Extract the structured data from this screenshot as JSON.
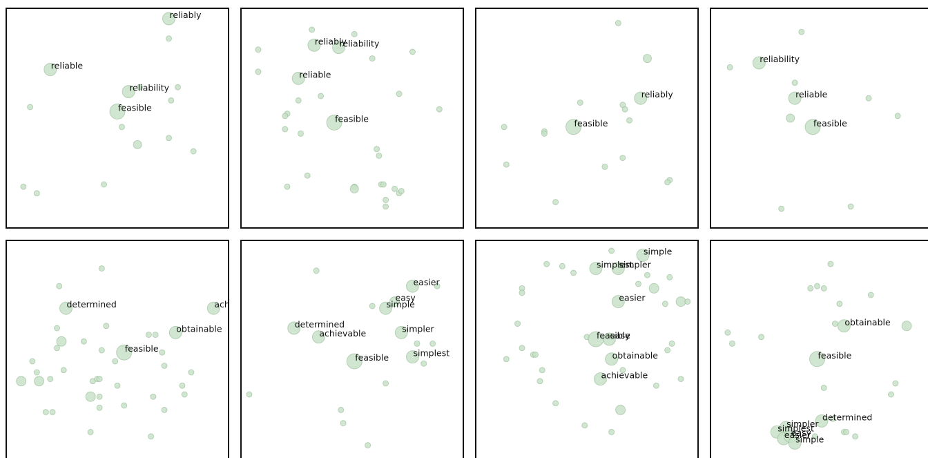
{
  "colors": {
    "point_fill": "#c8e2c8",
    "point_stroke": "#8fb58f",
    "frame": "#111111",
    "label": "#111111"
  },
  "chart_data": [
    {
      "type": "scatter",
      "xlim": [
        0,
        1
      ],
      "ylim": [
        0,
        1
      ],
      "points": [
        {
          "x": 0.73,
          "y": 0.95,
          "size": 9,
          "label": "reliably"
        },
        {
          "x": 0.73,
          "y": 0.86,
          "size": 4
        },
        {
          "x": 0.2,
          "y": 0.72,
          "size": 9,
          "label": "reliable"
        },
        {
          "x": 0.55,
          "y": 0.62,
          "size": 9,
          "label": "reliability"
        },
        {
          "x": 0.6,
          "y": 0.64,
          "size": 4
        },
        {
          "x": 0.77,
          "y": 0.64,
          "size": 4
        },
        {
          "x": 0.74,
          "y": 0.58,
          "size": 4
        },
        {
          "x": 0.11,
          "y": 0.55,
          "size": 4
        },
        {
          "x": 0.5,
          "y": 0.53,
          "size": 11,
          "label": "feasible"
        },
        {
          "x": 0.52,
          "y": 0.46,
          "size": 4
        },
        {
          "x": 0.59,
          "y": 0.38,
          "size": 6
        },
        {
          "x": 0.73,
          "y": 0.41,
          "size": 4
        },
        {
          "x": 0.84,
          "y": 0.35,
          "size": 4
        },
        {
          "x": 0.44,
          "y": 0.2,
          "size": 4
        },
        {
          "x": 0.08,
          "y": 0.19,
          "size": 4
        },
        {
          "x": 0.14,
          "y": 0.16,
          "size": 4
        }
      ]
    },
    {
      "type": "scatter",
      "xlim": [
        0,
        1
      ],
      "ylim": [
        0,
        1
      ],
      "points": [
        {
          "x": 0.33,
          "y": 0.83,
          "size": 9,
          "label": "reliably"
        },
        {
          "x": 0.44,
          "y": 0.82,
          "size": 9,
          "label": "reliability"
        },
        {
          "x": 0.32,
          "y": 0.9,
          "size": 4
        },
        {
          "x": 0.51,
          "y": 0.88,
          "size": 4
        },
        {
          "x": 0.08,
          "y": 0.81,
          "size": 4
        },
        {
          "x": 0.77,
          "y": 0.8,
          "size": 4
        },
        {
          "x": 0.59,
          "y": 0.77,
          "size": 4
        },
        {
          "x": 0.08,
          "y": 0.71,
          "size": 4
        },
        {
          "x": 0.26,
          "y": 0.68,
          "size": 9,
          "label": "reliable"
        },
        {
          "x": 0.71,
          "y": 0.61,
          "size": 4
        },
        {
          "x": 0.36,
          "y": 0.6,
          "size": 4
        },
        {
          "x": 0.26,
          "y": 0.58,
          "size": 4
        },
        {
          "x": 0.89,
          "y": 0.54,
          "size": 4
        },
        {
          "x": 0.21,
          "y": 0.52,
          "size": 4
        },
        {
          "x": 0.2,
          "y": 0.51,
          "size": 4
        },
        {
          "x": 0.42,
          "y": 0.48,
          "size": 11,
          "label": "feasible"
        },
        {
          "x": 0.2,
          "y": 0.45,
          "size": 4
        },
        {
          "x": 0.27,
          "y": 0.43,
          "size": 4
        },
        {
          "x": 0.61,
          "y": 0.36,
          "size": 4
        },
        {
          "x": 0.62,
          "y": 0.33,
          "size": 4
        },
        {
          "x": 0.3,
          "y": 0.24,
          "size": 4
        },
        {
          "x": 0.21,
          "y": 0.19,
          "size": 4
        },
        {
          "x": 0.51,
          "y": 0.19,
          "size": 4
        },
        {
          "x": 0.51,
          "y": 0.18,
          "size": 6
        },
        {
          "x": 0.63,
          "y": 0.2,
          "size": 4
        },
        {
          "x": 0.64,
          "y": 0.2,
          "size": 4
        },
        {
          "x": 0.69,
          "y": 0.18,
          "size": 4
        },
        {
          "x": 0.71,
          "y": 0.16,
          "size": 4
        },
        {
          "x": 0.72,
          "y": 0.17,
          "size": 4
        },
        {
          "x": 0.65,
          "y": 0.13,
          "size": 4
        },
        {
          "x": 0.65,
          "y": 0.1,
          "size": 4
        }
      ]
    },
    {
      "type": "scatter",
      "xlim": [
        0,
        1
      ],
      "ylim": [
        0,
        1
      ],
      "points": [
        {
          "x": 0.64,
          "y": 0.93,
          "size": 4
        },
        {
          "x": 0.77,
          "y": 0.77,
          "size": 6
        },
        {
          "x": 0.74,
          "y": 0.59,
          "size": 9,
          "label": "reliably"
        },
        {
          "x": 0.47,
          "y": 0.57,
          "size": 4
        },
        {
          "x": 0.66,
          "y": 0.56,
          "size": 4
        },
        {
          "x": 0.67,
          "y": 0.54,
          "size": 4
        },
        {
          "x": 0.69,
          "y": 0.49,
          "size": 4
        },
        {
          "x": 0.44,
          "y": 0.46,
          "size": 11,
          "label": "feasible"
        },
        {
          "x": 0.13,
          "y": 0.46,
          "size": 4
        },
        {
          "x": 0.31,
          "y": 0.44,
          "size": 4
        },
        {
          "x": 0.31,
          "y": 0.43,
          "size": 4
        },
        {
          "x": 0.66,
          "y": 0.32,
          "size": 4
        },
        {
          "x": 0.58,
          "y": 0.28,
          "size": 4
        },
        {
          "x": 0.14,
          "y": 0.29,
          "size": 4
        },
        {
          "x": 0.87,
          "y": 0.22,
          "size": 4
        },
        {
          "x": 0.86,
          "y": 0.21,
          "size": 4
        },
        {
          "x": 0.36,
          "y": 0.12,
          "size": 4
        }
      ]
    },
    {
      "type": "scatter",
      "xlim": [
        0,
        1
      ],
      "ylim": [
        0,
        1
      ],
      "points": [
        {
          "x": 0.41,
          "y": 0.89,
          "size": 4
        },
        {
          "x": 0.22,
          "y": 0.75,
          "size": 9,
          "label": "reliability"
        },
        {
          "x": 0.09,
          "y": 0.73,
          "size": 4
        },
        {
          "x": 0.38,
          "y": 0.66,
          "size": 4
        },
        {
          "x": 0.38,
          "y": 0.59,
          "size": 9,
          "label": "reliable"
        },
        {
          "x": 0.71,
          "y": 0.59,
          "size": 4
        },
        {
          "x": 0.36,
          "y": 0.5,
          "size": 6
        },
        {
          "x": 0.84,
          "y": 0.51,
          "size": 4
        },
        {
          "x": 0.46,
          "y": 0.46,
          "size": 11,
          "label": "feasible"
        },
        {
          "x": 0.32,
          "y": 0.09,
          "size": 4
        },
        {
          "x": 0.63,
          "y": 0.1,
          "size": 4
        }
      ]
    },
    {
      "type": "scatter",
      "xlim": [
        0,
        1
      ],
      "ylim": [
        0,
        1
      ],
      "points": [
        {
          "x": 0.43,
          "y": 0.87,
          "size": 4
        },
        {
          "x": 0.24,
          "y": 0.79,
          "size": 4
        },
        {
          "x": 0.27,
          "y": 0.69,
          "size": 9,
          "label": "determined"
        },
        {
          "x": 0.93,
          "y": 0.69,
          "size": 9,
          "label": "achievable"
        },
        {
          "x": 0.76,
          "y": 0.58,
          "size": 9,
          "label": "obtainable"
        },
        {
          "x": 0.23,
          "y": 0.6,
          "size": 4
        },
        {
          "x": 0.45,
          "y": 0.61,
          "size": 4
        },
        {
          "x": 0.25,
          "y": 0.54,
          "size": 7
        },
        {
          "x": 0.35,
          "y": 0.54,
          "size": 4
        },
        {
          "x": 0.64,
          "y": 0.57,
          "size": 4
        },
        {
          "x": 0.67,
          "y": 0.57,
          "size": 4
        },
        {
          "x": 0.23,
          "y": 0.51,
          "size": 4
        },
        {
          "x": 0.43,
          "y": 0.5,
          "size": 4
        },
        {
          "x": 0.53,
          "y": 0.49,
          "size": 11,
          "label": "feasible"
        },
        {
          "x": 0.7,
          "y": 0.49,
          "size": 4
        },
        {
          "x": 0.12,
          "y": 0.45,
          "size": 4
        },
        {
          "x": 0.49,
          "y": 0.45,
          "size": 4
        },
        {
          "x": 0.71,
          "y": 0.43,
          "size": 4
        },
        {
          "x": 0.14,
          "y": 0.4,
          "size": 4
        },
        {
          "x": 0.26,
          "y": 0.41,
          "size": 4
        },
        {
          "x": 0.83,
          "y": 0.4,
          "size": 4
        },
        {
          "x": 0.07,
          "y": 0.36,
          "size": 7
        },
        {
          "x": 0.15,
          "y": 0.36,
          "size": 7
        },
        {
          "x": 0.2,
          "y": 0.37,
          "size": 4
        },
        {
          "x": 0.39,
          "y": 0.36,
          "size": 4
        },
        {
          "x": 0.41,
          "y": 0.37,
          "size": 4
        },
        {
          "x": 0.42,
          "y": 0.37,
          "size": 4
        },
        {
          "x": 0.5,
          "y": 0.34,
          "size": 4
        },
        {
          "x": 0.79,
          "y": 0.34,
          "size": 4
        },
        {
          "x": 0.8,
          "y": 0.3,
          "size": 4
        },
        {
          "x": 0.38,
          "y": 0.29,
          "size": 7
        },
        {
          "x": 0.42,
          "y": 0.29,
          "size": 4
        },
        {
          "x": 0.66,
          "y": 0.29,
          "size": 4
        },
        {
          "x": 0.53,
          "y": 0.25,
          "size": 4
        },
        {
          "x": 0.42,
          "y": 0.24,
          "size": 4
        },
        {
          "x": 0.71,
          "y": 0.23,
          "size": 4
        },
        {
          "x": 0.18,
          "y": 0.22,
          "size": 4
        },
        {
          "x": 0.21,
          "y": 0.22,
          "size": 4
        },
        {
          "x": 0.38,
          "y": 0.13,
          "size": 4
        },
        {
          "x": 0.65,
          "y": 0.11,
          "size": 4
        }
      ]
    },
    {
      "type": "scatter",
      "xlim": [
        0,
        1
      ],
      "ylim": [
        0,
        1
      ],
      "points": [
        {
          "x": 0.34,
          "y": 0.86,
          "size": 4
        },
        {
          "x": 0.77,
          "y": 0.79,
          "size": 9,
          "label": "easier"
        },
        {
          "x": 0.88,
          "y": 0.79,
          "size": 4
        },
        {
          "x": 0.69,
          "y": 0.72,
          "size": 7,
          "label": "easy"
        },
        {
          "x": 0.59,
          "y": 0.7,
          "size": 4
        },
        {
          "x": 0.65,
          "y": 0.69,
          "size": 9,
          "label": "simple"
        },
        {
          "x": 0.24,
          "y": 0.6,
          "size": 9,
          "label": "determined"
        },
        {
          "x": 0.35,
          "y": 0.56,
          "size": 9,
          "label": "achievable"
        },
        {
          "x": 0.72,
          "y": 0.58,
          "size": 9,
          "label": "simpler"
        },
        {
          "x": 0.79,
          "y": 0.53,
          "size": 4
        },
        {
          "x": 0.86,
          "y": 0.53,
          "size": 4
        },
        {
          "x": 0.51,
          "y": 0.45,
          "size": 11,
          "label": "feasible"
        },
        {
          "x": 0.77,
          "y": 0.47,
          "size": 9,
          "label": "simplest"
        },
        {
          "x": 0.82,
          "y": 0.44,
          "size": 4
        },
        {
          "x": 0.65,
          "y": 0.35,
          "size": 4
        },
        {
          "x": 0.04,
          "y": 0.3,
          "size": 4
        },
        {
          "x": 0.45,
          "y": 0.23,
          "size": 4
        },
        {
          "x": 0.46,
          "y": 0.17,
          "size": 4
        },
        {
          "x": 0.57,
          "y": 0.07,
          "size": 4
        }
      ]
    },
    {
      "type": "scatter",
      "xlim": [
        0,
        1
      ],
      "ylim": [
        0,
        1
      ],
      "points": [
        {
          "x": 0.61,
          "y": 0.95,
          "size": 4
        },
        {
          "x": 0.75,
          "y": 0.93,
          "size": 9,
          "label": "simple"
        },
        {
          "x": 0.32,
          "y": 0.89,
          "size": 4
        },
        {
          "x": 0.39,
          "y": 0.88,
          "size": 4
        },
        {
          "x": 0.54,
          "y": 0.87,
          "size": 9,
          "label": "simplest"
        },
        {
          "x": 0.64,
          "y": 0.87,
          "size": 9,
          "label": "simpler"
        },
        {
          "x": 0.44,
          "y": 0.85,
          "size": 4
        },
        {
          "x": 0.77,
          "y": 0.84,
          "size": 4
        },
        {
          "x": 0.87,
          "y": 0.83,
          "size": 4
        },
        {
          "x": 0.73,
          "y": 0.8,
          "size": 4
        },
        {
          "x": 0.8,
          "y": 0.78,
          "size": 7
        },
        {
          "x": 0.21,
          "y": 0.78,
          "size": 4
        },
        {
          "x": 0.21,
          "y": 0.76,
          "size": 4
        },
        {
          "x": 0.64,
          "y": 0.72,
          "size": 9,
          "label": "easier"
        },
        {
          "x": 0.92,
          "y": 0.72,
          "size": 7
        },
        {
          "x": 0.95,
          "y": 0.72,
          "size": 4
        },
        {
          "x": 0.85,
          "y": 0.71,
          "size": 4
        },
        {
          "x": 0.19,
          "y": 0.62,
          "size": 4
        },
        {
          "x": 0.5,
          "y": 0.56,
          "size": 4
        },
        {
          "x": 0.54,
          "y": 0.55,
          "size": 11,
          "label": "feasible"
        },
        {
          "x": 0.6,
          "y": 0.55,
          "size": 9,
          "label": "easy"
        },
        {
          "x": 0.88,
          "y": 0.53,
          "size": 4
        },
        {
          "x": 0.21,
          "y": 0.51,
          "size": 4
        },
        {
          "x": 0.86,
          "y": 0.5,
          "size": 4
        },
        {
          "x": 0.26,
          "y": 0.48,
          "size": 4
        },
        {
          "x": 0.27,
          "y": 0.48,
          "size": 4
        },
        {
          "x": 0.14,
          "y": 0.46,
          "size": 4
        },
        {
          "x": 0.61,
          "y": 0.46,
          "size": 9,
          "label": "obtainable"
        },
        {
          "x": 0.66,
          "y": 0.41,
          "size": 4
        },
        {
          "x": 0.3,
          "y": 0.41,
          "size": 4
        },
        {
          "x": 0.56,
          "y": 0.37,
          "size": 9,
          "label": "achievable"
        },
        {
          "x": 0.29,
          "y": 0.36,
          "size": 4
        },
        {
          "x": 0.92,
          "y": 0.37,
          "size": 4
        },
        {
          "x": 0.81,
          "y": 0.34,
          "size": 4
        },
        {
          "x": 0.36,
          "y": 0.26,
          "size": 4
        },
        {
          "x": 0.65,
          "y": 0.23,
          "size": 7
        },
        {
          "x": 0.49,
          "y": 0.16,
          "size": 4
        },
        {
          "x": 0.61,
          "y": 0.13,
          "size": 4
        }
      ]
    },
    {
      "type": "scatter",
      "xlim": [
        0,
        1
      ],
      "ylim": [
        0,
        1
      ],
      "points": [
        {
          "x": 0.54,
          "y": 0.89,
          "size": 4
        },
        {
          "x": 0.45,
          "y": 0.78,
          "size": 4
        },
        {
          "x": 0.48,
          "y": 0.79,
          "size": 4
        },
        {
          "x": 0.51,
          "y": 0.78,
          "size": 4
        },
        {
          "x": 0.72,
          "y": 0.75,
          "size": 4
        },
        {
          "x": 0.58,
          "y": 0.71,
          "size": 4
        },
        {
          "x": 0.56,
          "y": 0.62,
          "size": 4
        },
        {
          "x": 0.6,
          "y": 0.61,
          "size": 9,
          "label": "obtainable"
        },
        {
          "x": 0.88,
          "y": 0.61,
          "size": 7
        },
        {
          "x": 0.08,
          "y": 0.58,
          "size": 4
        },
        {
          "x": 0.23,
          "y": 0.56,
          "size": 4
        },
        {
          "x": 0.1,
          "y": 0.53,
          "size": 4
        },
        {
          "x": 0.48,
          "y": 0.46,
          "size": 11,
          "label": "feasible"
        },
        {
          "x": 0.51,
          "y": 0.33,
          "size": 4
        },
        {
          "x": 0.83,
          "y": 0.35,
          "size": 4
        },
        {
          "x": 0.81,
          "y": 0.3,
          "size": 4
        },
        {
          "x": 0.55,
          "y": 0.19,
          "size": 4
        },
        {
          "x": 0.5,
          "y": 0.18,
          "size": 9,
          "label": "determined"
        },
        {
          "x": 0.3,
          "y": 0.13,
          "size": 9,
          "label": "simplest"
        },
        {
          "x": 0.34,
          "y": 0.15,
          "size": 9,
          "label": "simpler"
        },
        {
          "x": 0.33,
          "y": 0.1,
          "size": 9,
          "label": "easier"
        },
        {
          "x": 0.36,
          "y": 0.11,
          "size": 9,
          "label": "easy"
        },
        {
          "x": 0.38,
          "y": 0.08,
          "size": 9,
          "label": "simple"
        },
        {
          "x": 0.47,
          "y": 0.11,
          "size": 4
        },
        {
          "x": 0.6,
          "y": 0.13,
          "size": 4
        },
        {
          "x": 0.61,
          "y": 0.13,
          "size": 4
        },
        {
          "x": 0.65,
          "y": 0.11,
          "size": 4
        }
      ]
    }
  ]
}
